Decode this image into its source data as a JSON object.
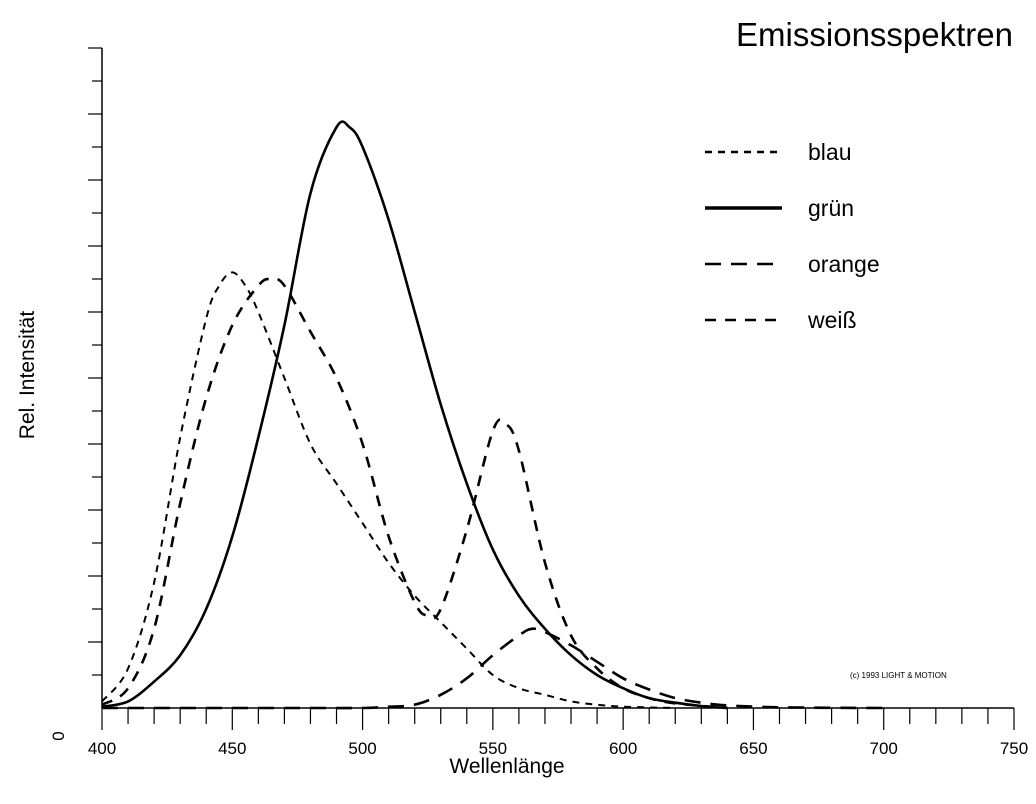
{
  "chart_data": {
    "type": "line",
    "title": "Emissionsspektren",
    "xlabel": "Wellenlänge",
    "ylabel": "Rel. Intensität",
    "y_zero_label": "0",
    "xlim": [
      400,
      750
    ],
    "ylim": [
      0,
      1.0
    ],
    "x_ticks": [
      400,
      450,
      500,
      550,
      600,
      650,
      700,
      750
    ],
    "x_tick_labels": [
      "400",
      "450",
      "500",
      "550",
      "600",
      "650",
      "700",
      "750"
    ],
    "x_minor_step": 10,
    "y_minor_ticks": 20,
    "legend_position": "top-right",
    "copyright": "(c) 1993 LIGHT & MOTION",
    "series": [
      {
        "name": "blau",
        "style": "short-dash",
        "x": [
          400,
          410,
          420,
          430,
          440,
          445,
          450,
          455,
          460,
          470,
          480,
          490,
          500,
          510,
          520,
          530,
          540,
          550,
          560,
          570,
          580,
          590,
          600,
          620
        ],
        "y": [
          0.01,
          0.06,
          0.19,
          0.41,
          0.59,
          0.64,
          0.66,
          0.64,
          0.6,
          0.5,
          0.4,
          0.34,
          0.28,
          0.22,
          0.17,
          0.13,
          0.09,
          0.05,
          0.03,
          0.02,
          0.01,
          0.005,
          0.002,
          0
        ]
      },
      {
        "name": "grün",
        "style": "solid",
        "x": [
          400,
          410,
          420,
          430,
          440,
          450,
          460,
          470,
          480,
          490,
          495,
          500,
          510,
          520,
          530,
          540,
          550,
          560,
          570,
          580,
          590,
          600,
          610,
          620,
          630,
          640
        ],
        "y": [
          0.002,
          0.01,
          0.04,
          0.08,
          0.15,
          0.26,
          0.41,
          0.58,
          0.78,
          0.88,
          0.88,
          0.85,
          0.74,
          0.6,
          0.46,
          0.34,
          0.24,
          0.17,
          0.12,
          0.08,
          0.05,
          0.03,
          0.015,
          0.008,
          0.003,
          0
        ]
      },
      {
        "name": "orange",
        "style": "long-dash",
        "x": [
          400,
          480,
          500,
          510,
          520,
          530,
          540,
          550,
          560,
          565,
          570,
          580,
          590,
          600,
          610,
          620,
          630,
          640,
          660,
          700
        ],
        "y": [
          0,
          0,
          0,
          0.002,
          0.005,
          0.02,
          0.045,
          0.08,
          0.11,
          0.12,
          0.115,
          0.095,
          0.07,
          0.045,
          0.028,
          0.015,
          0.008,
          0.004,
          0.001,
          0
        ]
      },
      {
        "name": "weiß",
        "style": "dash",
        "x": [
          400,
          410,
          420,
          430,
          440,
          450,
          460,
          465,
          470,
          480,
          490,
          500,
          510,
          520,
          525,
          530,
          540,
          550,
          555,
          560,
          570,
          580,
          590,
          600,
          610,
          620,
          640
        ],
        "y": [
          0.005,
          0.03,
          0.12,
          0.31,
          0.47,
          0.58,
          0.64,
          0.65,
          0.64,
          0.57,
          0.5,
          0.4,
          0.26,
          0.16,
          0.14,
          0.15,
          0.27,
          0.42,
          0.43,
          0.39,
          0.22,
          0.11,
          0.06,
          0.03,
          0.015,
          0.007,
          0
        ]
      }
    ]
  }
}
